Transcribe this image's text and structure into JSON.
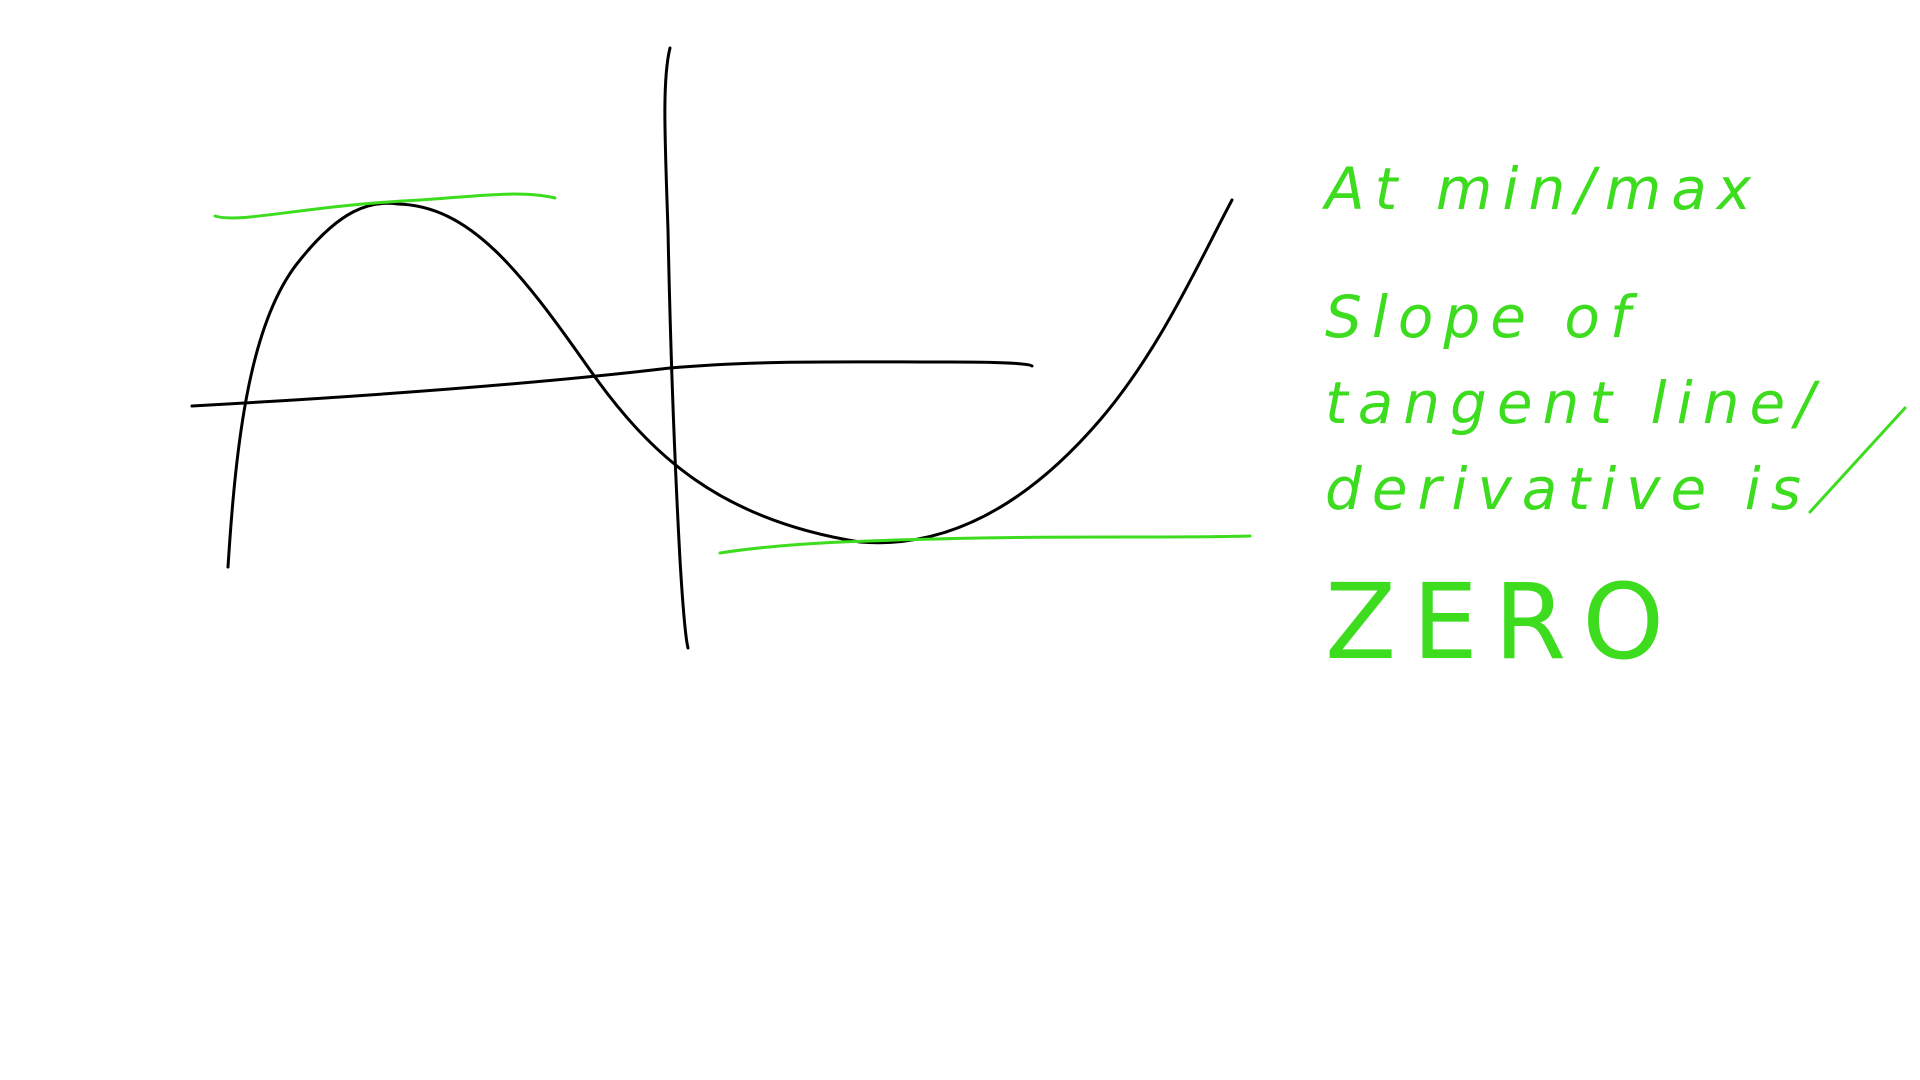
{
  "annotation": {
    "lines": [
      "At min/max",
      "Slope of",
      "tangent line/",
      "derivative is",
      "ZERO"
    ]
  },
  "colors": {
    "ink": "#000000",
    "highlight": "#3ddc1f",
    "background": "#ffffff"
  }
}
